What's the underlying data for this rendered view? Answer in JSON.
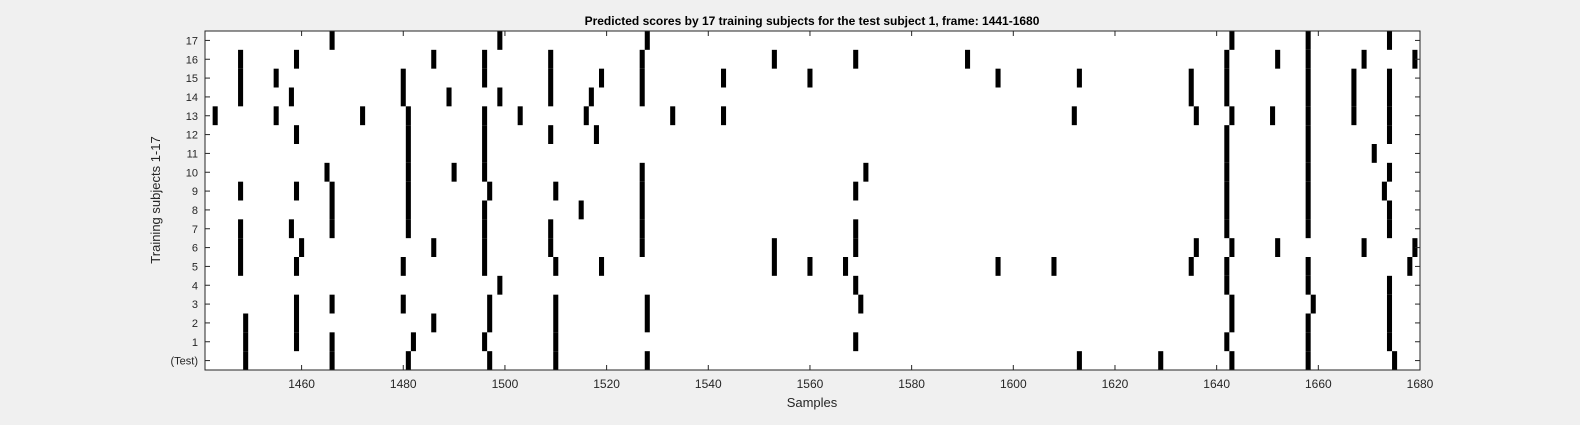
{
  "chart_data": {
    "type": "heatmap",
    "title": "Predicted scores by 17 training subjects for the test subject 1, frame: 1441-1680",
    "xlabel": "Samples",
    "ylabel": "Training subjects 1-17",
    "xlim": [
      1441,
      1680
    ],
    "xticks": [
      1460,
      1480,
      1500,
      1520,
      1540,
      1560,
      1580,
      1600,
      1620,
      1640,
      1660,
      1680
    ],
    "rows": [
      "(Test)",
      "1",
      "2",
      "3",
      "4",
      "5",
      "6",
      "7",
      "8",
      "9",
      "10",
      "11",
      "12",
      "13",
      "14",
      "15",
      "16",
      "17"
    ],
    "grid": false,
    "colors": {
      "mark": "#000000",
      "background": "#ffffff",
      "figure": "#f0f0f0"
    },
    "series": [
      {
        "row": "(Test)",
        "x": [
          1449,
          1466,
          1481,
          1497,
          1510,
          1528,
          1613,
          1629,
          1643,
          1658,
          1675
        ]
      },
      {
        "row": "1",
        "x": [
          1449,
          1459,
          1466,
          1482,
          1496,
          1510,
          1569,
          1642,
          1658,
          1674
        ]
      },
      {
        "row": "2",
        "x": [
          1449,
          1459,
          1486,
          1497,
          1510,
          1528,
          1643,
          1658,
          1674
        ]
      },
      {
        "row": "3",
        "x": [
          1459,
          1466,
          1480,
          1497,
          1510,
          1528,
          1570,
          1643,
          1659,
          1674
        ]
      },
      {
        "row": "4",
        "x": [
          1499,
          1569,
          1642,
          1658,
          1674
        ]
      },
      {
        "row": "5",
        "x": [
          1448,
          1459,
          1480,
          1496,
          1510,
          1519,
          1553,
          1560,
          1567,
          1597,
          1608,
          1635,
          1642,
          1658,
          1678
        ]
      },
      {
        "row": "6",
        "x": [
          1448,
          1460,
          1486,
          1496,
          1509,
          1527,
          1553,
          1569,
          1636,
          1643,
          1652,
          1669,
          1679
        ]
      },
      {
        "row": "7",
        "x": [
          1448,
          1458,
          1466,
          1481,
          1496,
          1509,
          1527,
          1569,
          1642,
          1658,
          1674
        ]
      },
      {
        "row": "8",
        "x": [
          1466,
          1481,
          1496,
          1515,
          1527,
          1642,
          1658,
          1674
        ]
      },
      {
        "row": "9",
        "x": [
          1448,
          1459,
          1466,
          1481,
          1497,
          1510,
          1527,
          1569,
          1642,
          1658,
          1673
        ]
      },
      {
        "row": "10",
        "x": [
          1465,
          1481,
          1490,
          1496,
          1527,
          1571,
          1642,
          1658,
          1674
        ]
      },
      {
        "row": "11",
        "x": [
          1481,
          1496,
          1642,
          1658,
          1671
        ]
      },
      {
        "row": "12",
        "x": [
          1459,
          1481,
          1496,
          1509,
          1518,
          1642,
          1658,
          1674
        ]
      },
      {
        "row": "13",
        "x": [
          1443,
          1455,
          1472,
          1481,
          1496,
          1503,
          1516,
          1533,
          1543,
          1612,
          1636,
          1643,
          1651,
          1658,
          1667,
          1674
        ]
      },
      {
        "row": "14",
        "x": [
          1448,
          1458,
          1480,
          1489,
          1499,
          1509,
          1517,
          1527,
          1635,
          1642,
          1658,
          1667,
          1674
        ]
      },
      {
        "row": "15",
        "x": [
          1448,
          1455,
          1480,
          1496,
          1509,
          1519,
          1527,
          1543,
          1560,
          1597,
          1613,
          1635,
          1642,
          1658,
          1667,
          1674
        ]
      },
      {
        "row": "16",
        "x": [
          1448,
          1459,
          1486,
          1496,
          1509,
          1527,
          1553,
          1569,
          1591,
          1642,
          1652,
          1658,
          1669,
          1679
        ]
      },
      {
        "row": "17",
        "x": [
          1466,
          1499,
          1528,
          1643,
          1658,
          1674
        ]
      }
    ]
  }
}
